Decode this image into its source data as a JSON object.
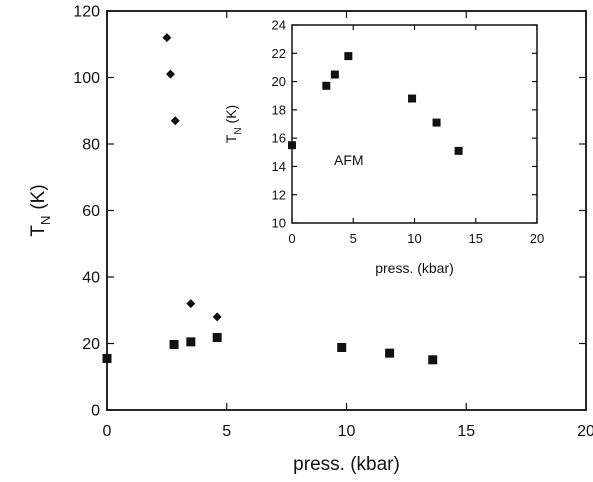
{
  "chart_data": [
    {
      "type": "scatter",
      "xlabel": "press. (kbar)",
      "ylabel_main": "T",
      "ylabel_sub": "N",
      "ylabel_unit": "(K)",
      "xlim": [
        0,
        20
      ],
      "ylim": [
        0,
        120
      ],
      "xticks": [
        0,
        5,
        10,
        15,
        20
      ],
      "yticks": [
        0,
        20,
        40,
        60,
        80,
        100,
        120
      ],
      "series": [
        {
          "marker": "square",
          "x": [
            0,
            2.8,
            3.5,
            4.6,
            9.8,
            11.8,
            13.6
          ],
          "y": [
            15.5,
            19.7,
            20.5,
            21.8,
            18.8,
            17.1,
            15.1
          ]
        },
        {
          "marker": "diamond",
          "x": [
            2.5,
            2.65,
            2.85,
            3.5,
            4.6
          ],
          "y": [
            112,
            101,
            87,
            32,
            28
          ]
        }
      ]
    },
    {
      "type": "scatter",
      "xlabel": "press. (kbar)",
      "ylabel_main": "T",
      "ylabel_sub": "N",
      "ylabel_unit": "(K)",
      "annotation": "AFM",
      "xlim": [
        0,
        20
      ],
      "ylim": [
        10,
        24
      ],
      "xticks": [
        0,
        5,
        10,
        15,
        20
      ],
      "yticks": [
        10,
        12,
        14,
        16,
        18,
        20,
        22,
        24
      ],
      "series": [
        {
          "marker": "square",
          "x": [
            0,
            2.8,
            3.5,
            4.6,
            9.8,
            11.8,
            13.6
          ],
          "y": [
            15.5,
            19.7,
            20.5,
            21.8,
            18.8,
            17.1,
            15.1
          ]
        }
      ]
    }
  ]
}
